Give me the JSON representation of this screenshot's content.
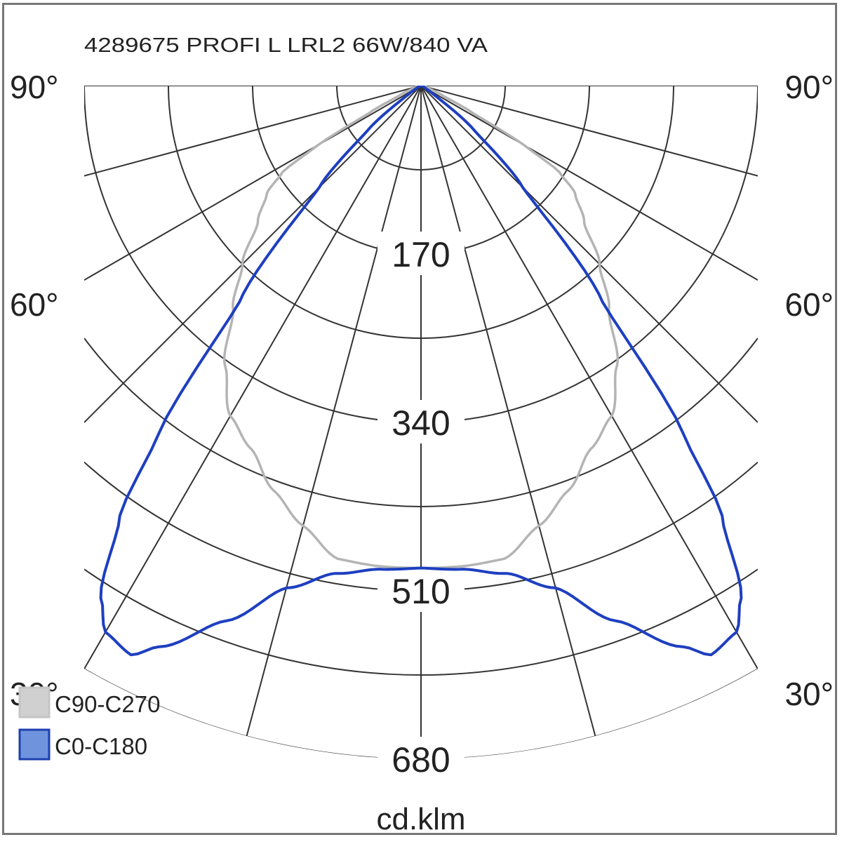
{
  "chart_data": {
    "type": "polar",
    "title": "4289675 PROFI L LRL2 66W/840 VA",
    "unit_label": "cd.klm",
    "radial_ticks": [
      170,
      340,
      510,
      680
    ],
    "radial_max": 680,
    "radial_grid_step": 85,
    "angle_grid_step_deg": 15,
    "angle_labels": [
      "90°",
      "60°",
      "30°"
    ],
    "angle_label_values": [
      90,
      60,
      30
    ],
    "grid": true,
    "legend_position": "bottom-left",
    "series": [
      {
        "name": "C90-C270",
        "color": "#b4b4b4",
        "legend_fill": "#d0d0d0",
        "gamma_deg": [
          0,
          5,
          10,
          15,
          20,
          25,
          30,
          35,
          40,
          45,
          50,
          55,
          58,
          60,
          62,
          65,
          70,
          80,
          90
        ],
        "intensity": [
          487,
          487,
          485,
          460,
          435,
          405,
          385,
          345,
          295,
          255,
          215,
          190,
          165,
          120,
          60,
          25,
          8,
          2,
          0
        ]
      },
      {
        "name": "C0-C180",
        "color": "#1e3fc0",
        "legend_fill": "#6f93dd",
        "gamma_deg": [
          0,
          5,
          10,
          15,
          20,
          25,
          27,
          30,
          32,
          35,
          37,
          40,
          45,
          50,
          55,
          60,
          70,
          90
        ],
        "intensity": [
          487,
          490,
          500,
          525,
          575,
          625,
          645,
          637,
          610,
          530,
          440,
          285,
          145,
          70,
          15,
          5,
          2,
          0
        ]
      }
    ]
  }
}
